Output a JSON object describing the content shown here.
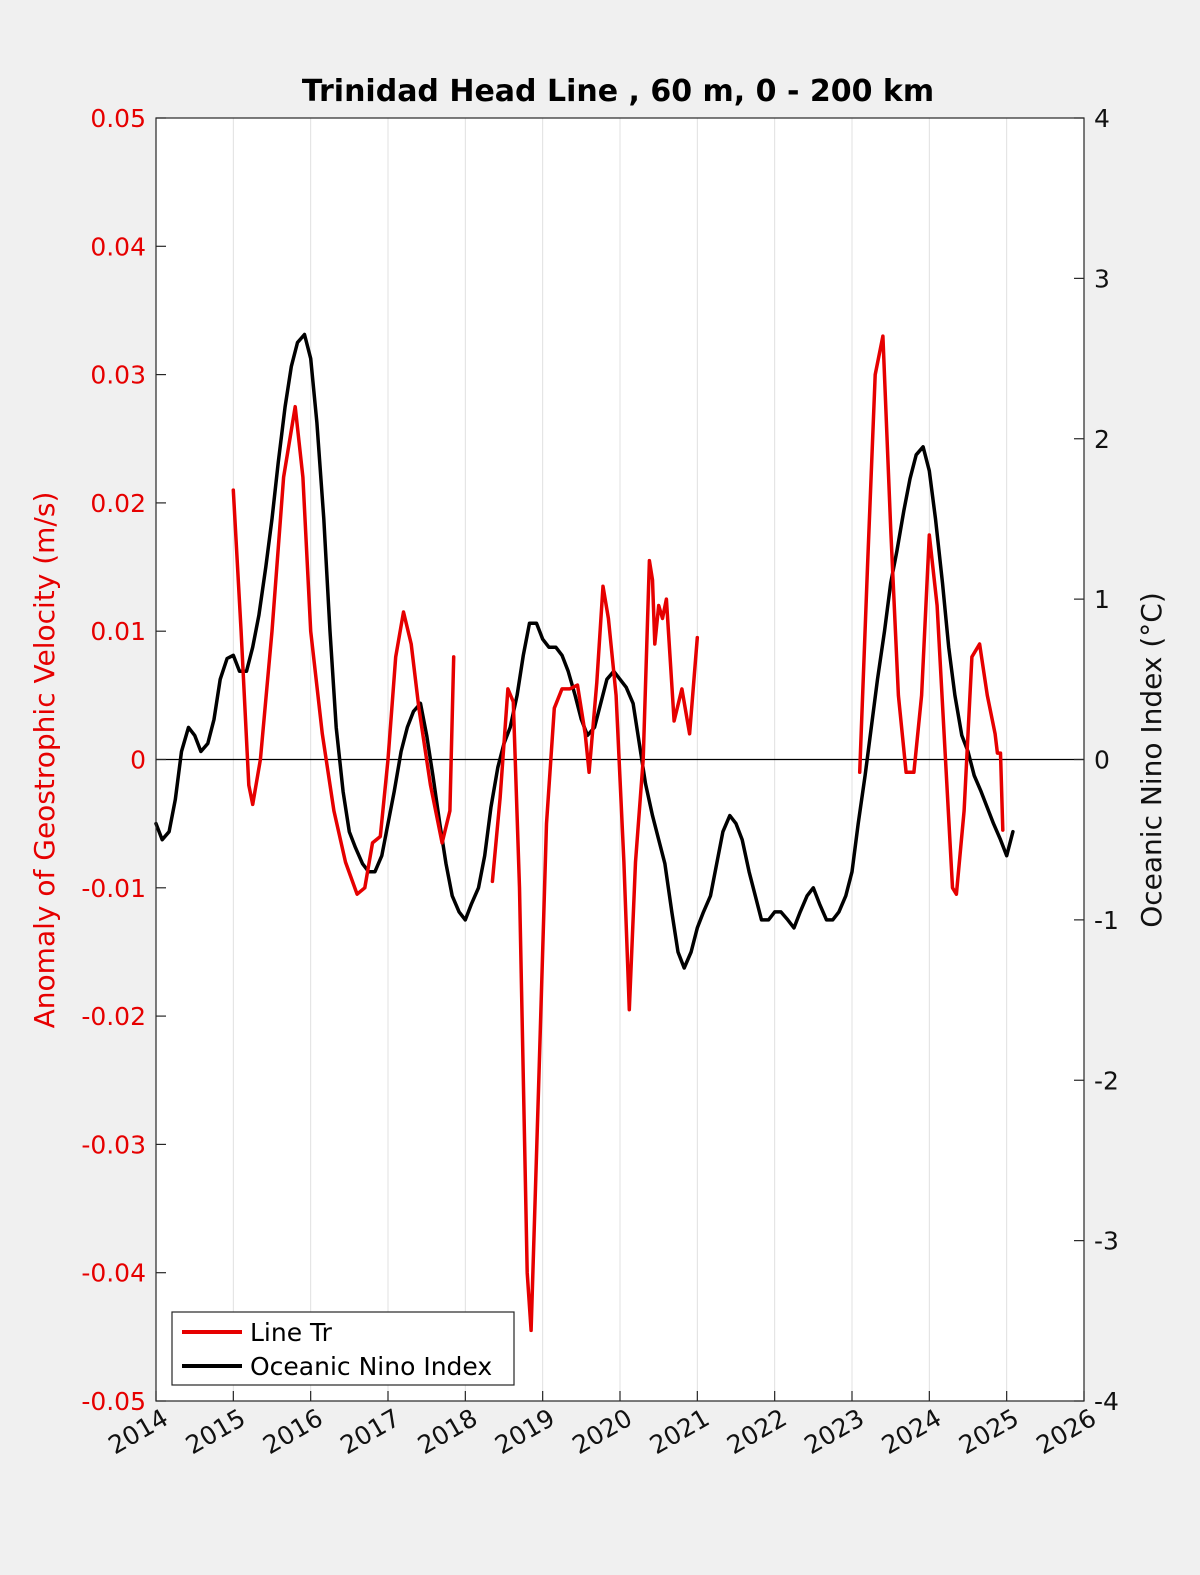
{
  "chart_data": {
    "type": "line",
    "title": "Trinidad Head Line , 60 m, 0 - 200 km",
    "xlabel": "",
    "ylabel_left": "Anomaly of Geostrophic Velocity (m/s)",
    "ylabel_right": "Oceanic Nino Index (°C)",
    "xlim": [
      2014,
      2026
    ],
    "ylim_left": [
      -0.05,
      0.05
    ],
    "ylim_right": [
      -4,
      4
    ],
    "x_ticks": [
      "2014",
      "2015",
      "2016",
      "2017",
      "2018",
      "2019",
      "2020",
      "2021",
      "2022",
      "2023",
      "2024",
      "2025",
      "2026"
    ],
    "y_left_ticks": [
      "-0.05",
      "-0.04",
      "-0.03",
      "-0.02",
      "-0.01",
      "0",
      "0.01",
      "0.02",
      "0.03",
      "0.04",
      "0.05"
    ],
    "y_right_ticks": [
      "-4",
      "-3",
      "-2",
      "-1",
      "0",
      "1",
      "2",
      "3",
      "4"
    ],
    "grid": "vertical",
    "legend_position": "bottom-left",
    "series": [
      {
        "name": "Line Tr",
        "axis": "left",
        "color": "#e60000",
        "segments": [
          [
            [
              2015.0,
              0.021
            ],
            [
              2015.1,
              0.01
            ],
            [
              2015.2,
              -0.002
            ],
            [
              2015.25,
              -0.0035
            ],
            [
              2015.35,
              0.0
            ],
            [
              2015.5,
              0.01
            ],
            [
              2015.65,
              0.022
            ],
            [
              2015.8,
              0.0275
            ],
            [
              2015.9,
              0.022
            ],
            [
              2016.0,
              0.01
            ],
            [
              2016.15,
              0.002
            ],
            [
              2016.3,
              -0.004
            ],
            [
              2016.45,
              -0.008
            ],
            [
              2016.6,
              -0.0105
            ],
            [
              2016.7,
              -0.01
            ],
            [
              2016.8,
              -0.0065
            ],
            [
              2016.9,
              -0.006
            ],
            [
              2017.0,
              0.0
            ],
            [
              2017.1,
              0.008
            ],
            [
              2017.2,
              0.0115
            ],
            [
              2017.3,
              0.009
            ],
            [
              2017.4,
              0.004
            ],
            [
              2017.55,
              -0.002
            ],
            [
              2017.7,
              -0.0065
            ],
            [
              2017.8,
              -0.004
            ],
            [
              2017.85,
              0.008
            ]
          ],
          [
            [
              2018.35,
              -0.0095
            ],
            [
              2018.45,
              -0.003
            ],
            [
              2018.55,
              0.0055
            ],
            [
              2018.62,
              0.0045
            ],
            [
              2018.7,
              -0.01
            ],
            [
              2018.8,
              -0.04
            ],
            [
              2018.85,
              -0.0445
            ],
            [
              2018.95,
              -0.025
            ],
            [
              2019.05,
              -0.005
            ],
            [
              2019.15,
              0.004
            ],
            [
              2019.25,
              0.0055
            ],
            [
              2019.35,
              0.0055
            ],
            [
              2019.45,
              0.0058
            ],
            [
              2019.55,
              0.002
            ],
            [
              2019.6,
              -0.001
            ],
            [
              2019.7,
              0.006
            ],
            [
              2019.78,
              0.0135
            ],
            [
              2019.85,
              0.011
            ],
            [
              2019.95,
              0.005
            ],
            [
              2020.05,
              -0.008
            ],
            [
              2020.12,
              -0.0195
            ],
            [
              2020.2,
              -0.008
            ],
            [
              2020.3,
              0.0
            ],
            [
              2020.38,
              0.0155
            ],
            [
              2020.42,
              0.014
            ],
            [
              2020.45,
              0.009
            ],
            [
              2020.5,
              0.012
            ],
            [
              2020.55,
              0.011
            ],
            [
              2020.6,
              0.0125
            ],
            [
              2020.7,
              0.003
            ],
            [
              2020.8,
              0.0055
            ],
            [
              2020.9,
              0.002
            ],
            [
              2021.0,
              0.0095
            ]
          ],
          [
            [
              2023.1,
              -0.001
            ],
            [
              2023.2,
              0.015
            ],
            [
              2023.3,
              0.03
            ],
            [
              2023.4,
              0.033
            ],
            [
              2023.5,
              0.018
            ],
            [
              2023.6,
              0.005
            ],
            [
              2023.7,
              -0.001
            ],
            [
              2023.8,
              -0.001
            ],
            [
              2023.9,
              0.005
            ],
            [
              2024.0,
              0.0175
            ],
            [
              2024.1,
              0.012
            ],
            [
              2024.2,
              0.001
            ],
            [
              2024.3,
              -0.01
            ],
            [
              2024.35,
              -0.0105
            ],
            [
              2024.45,
              -0.004
            ],
            [
              2024.55,
              0.008
            ],
            [
              2024.65,
              0.009
            ],
            [
              2024.75,
              0.005
            ],
            [
              2024.85,
              0.002
            ],
            [
              2024.88,
              0.0005
            ],
            [
              2024.92,
              0.0005
            ],
            [
              2024.95,
              -0.0055
            ]
          ]
        ]
      },
      {
        "name": "Oceanic Nino Index",
        "axis": "right",
        "color": "#000000",
        "segments": [
          [
            [
              2014.0,
              -0.4
            ],
            [
              2014.08,
              -0.5
            ],
            [
              2014.17,
              -0.45
            ],
            [
              2014.25,
              -0.25
            ],
            [
              2014.33,
              0.05
            ],
            [
              2014.42,
              0.2
            ],
            [
              2014.5,
              0.15
            ],
            [
              2014.58,
              0.05
            ],
            [
              2014.67,
              0.1
            ],
            [
              2014.75,
              0.25
            ],
            [
              2014.83,
              0.5
            ],
            [
              2014.92,
              0.63
            ],
            [
              2015.0,
              0.65
            ],
            [
              2015.08,
              0.55
            ],
            [
              2015.17,
              0.55
            ],
            [
              2015.25,
              0.7
            ],
            [
              2015.33,
              0.9
            ],
            [
              2015.42,
              1.2
            ],
            [
              2015.5,
              1.5
            ],
            [
              2015.58,
              1.85
            ],
            [
              2015.67,
              2.2
            ],
            [
              2015.75,
              2.45
            ],
            [
              2015.83,
              2.6
            ],
            [
              2015.92,
              2.65
            ],
            [
              2016.0,
              2.5
            ],
            [
              2016.08,
              2.1
            ],
            [
              2016.17,
              1.5
            ],
            [
              2016.25,
              0.8
            ],
            [
              2016.33,
              0.2
            ],
            [
              2016.42,
              -0.2
            ],
            [
              2016.5,
              -0.45
            ],
            [
              2016.58,
              -0.55
            ],
            [
              2016.67,
              -0.65
            ],
            [
              2016.75,
              -0.7
            ],
            [
              2016.83,
              -0.7
            ],
            [
              2016.92,
              -0.6
            ],
            [
              2017.0,
              -0.4
            ],
            [
              2017.08,
              -0.2
            ],
            [
              2017.17,
              0.05
            ],
            [
              2017.25,
              0.2
            ],
            [
              2017.33,
              0.3
            ],
            [
              2017.42,
              0.35
            ],
            [
              2017.5,
              0.15
            ],
            [
              2017.58,
              -0.1
            ],
            [
              2017.67,
              -0.4
            ],
            [
              2017.75,
              -0.65
            ],
            [
              2017.83,
              -0.85
            ],
            [
              2017.92,
              -0.95
            ],
            [
              2018.0,
              -1.0
            ],
            [
              2018.08,
              -0.9
            ],
            [
              2018.17,
              -0.8
            ],
            [
              2018.25,
              -0.6
            ],
            [
              2018.33,
              -0.3
            ],
            [
              2018.42,
              -0.05
            ],
            [
              2018.5,
              0.1
            ],
            [
              2018.58,
              0.2
            ],
            [
              2018.67,
              0.4
            ],
            [
              2018.75,
              0.65
            ],
            [
              2018.83,
              0.85
            ],
            [
              2018.92,
              0.85
            ],
            [
              2019.0,
              0.75
            ],
            [
              2019.08,
              0.7
            ],
            [
              2019.17,
              0.7
            ],
            [
              2019.25,
              0.65
            ],
            [
              2019.33,
              0.55
            ],
            [
              2019.42,
              0.4
            ],
            [
              2019.5,
              0.25
            ],
            [
              2019.58,
              0.15
            ],
            [
              2019.67,
              0.2
            ],
            [
              2019.75,
              0.35
            ],
            [
              2019.83,
              0.5
            ],
            [
              2019.92,
              0.55
            ],
            [
              2020.0,
              0.5
            ],
            [
              2020.08,
              0.45
            ],
            [
              2020.17,
              0.35
            ],
            [
              2020.25,
              0.1
            ],
            [
              2020.33,
              -0.15
            ],
            [
              2020.42,
              -0.35
            ],
            [
              2020.5,
              -0.5
            ],
            [
              2020.58,
              -0.65
            ],
            [
              2020.67,
              -0.95
            ],
            [
              2020.75,
              -1.2
            ],
            [
              2020.83,
              -1.3
            ],
            [
              2020.92,
              -1.2
            ],
            [
              2021.0,
              -1.05
            ],
            [
              2021.08,
              -0.95
            ],
            [
              2021.17,
              -0.85
            ],
            [
              2021.25,
              -0.65
            ],
            [
              2021.33,
              -0.45
            ],
            [
              2021.42,
              -0.35
            ],
            [
              2021.5,
              -0.4
            ],
            [
              2021.58,
              -0.5
            ],
            [
              2021.67,
              -0.7
            ],
            [
              2021.75,
              -0.85
            ],
            [
              2021.83,
              -1.0
            ],
            [
              2021.92,
              -1.0
            ],
            [
              2022.0,
              -0.95
            ],
            [
              2022.08,
              -0.95
            ],
            [
              2022.17,
              -1.0
            ],
            [
              2022.25,
              -1.05
            ],
            [
              2022.33,
              -0.95
            ],
            [
              2022.42,
              -0.85
            ],
            [
              2022.5,
              -0.8
            ],
            [
              2022.58,
              -0.9
            ],
            [
              2022.67,
              -1.0
            ],
            [
              2022.75,
              -1.0
            ],
            [
              2022.83,
              -0.95
            ],
            [
              2022.92,
              -0.85
            ],
            [
              2023.0,
              -0.7
            ],
            [
              2023.08,
              -0.4
            ],
            [
              2023.17,
              -0.1
            ],
            [
              2023.25,
              0.2
            ],
            [
              2023.33,
              0.5
            ],
            [
              2023.42,
              0.8
            ],
            [
              2023.5,
              1.1
            ],
            [
              2023.58,
              1.3
            ],
            [
              2023.67,
              1.55
            ],
            [
              2023.75,
              1.75
            ],
            [
              2023.83,
              1.9
            ],
            [
              2023.92,
              1.95
            ],
            [
              2024.0,
              1.8
            ],
            [
              2024.08,
              1.5
            ],
            [
              2024.17,
              1.1
            ],
            [
              2024.25,
              0.7
            ],
            [
              2024.33,
              0.4
            ],
            [
              2024.42,
              0.15
            ],
            [
              2024.5,
              0.05
            ],
            [
              2024.58,
              -0.1
            ],
            [
              2024.67,
              -0.2
            ],
            [
              2024.75,
              -0.3
            ],
            [
              2024.83,
              -0.4
            ],
            [
              2024.92,
              -0.5
            ],
            [
              2025.0,
              -0.6
            ],
            [
              2025.08,
              -0.45
            ]
          ]
        ]
      }
    ]
  }
}
